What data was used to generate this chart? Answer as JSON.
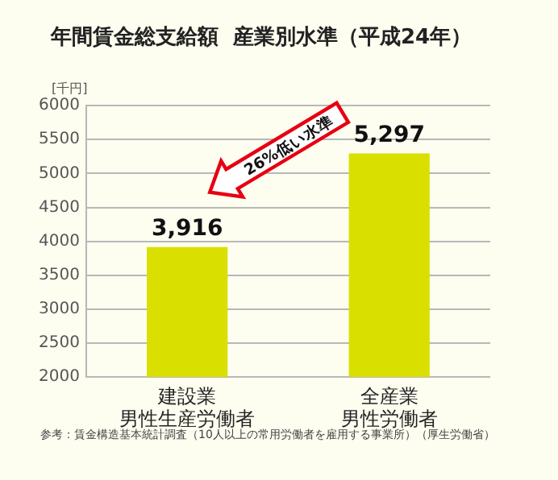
{
  "chart_data": {
    "type": "bar",
    "title": "年間賃金総支給額  産業別水準（平成24年）",
    "ylabel": "[千円]",
    "categories": [
      "建設業男性生産労働者",
      "全産業男性労働者"
    ],
    "values": [
      3916,
      5297
    ],
    "color": "#d9e000",
    "value_labels": [
      "3,916",
      "5,297"
    ],
    "ylim": [
      2000,
      6000
    ],
    "yticks": [
      2000,
      2500,
      3000,
      3500,
      4000,
      4500,
      5000,
      5500,
      6000
    ],
    "grid": "y",
    "annotations": [
      "26%低い水準",
      "参考：賃金構造基本統計調査（10人以上の常用労働者を雇用する事業所）（厚生労働省）"
    ]
  }
}
